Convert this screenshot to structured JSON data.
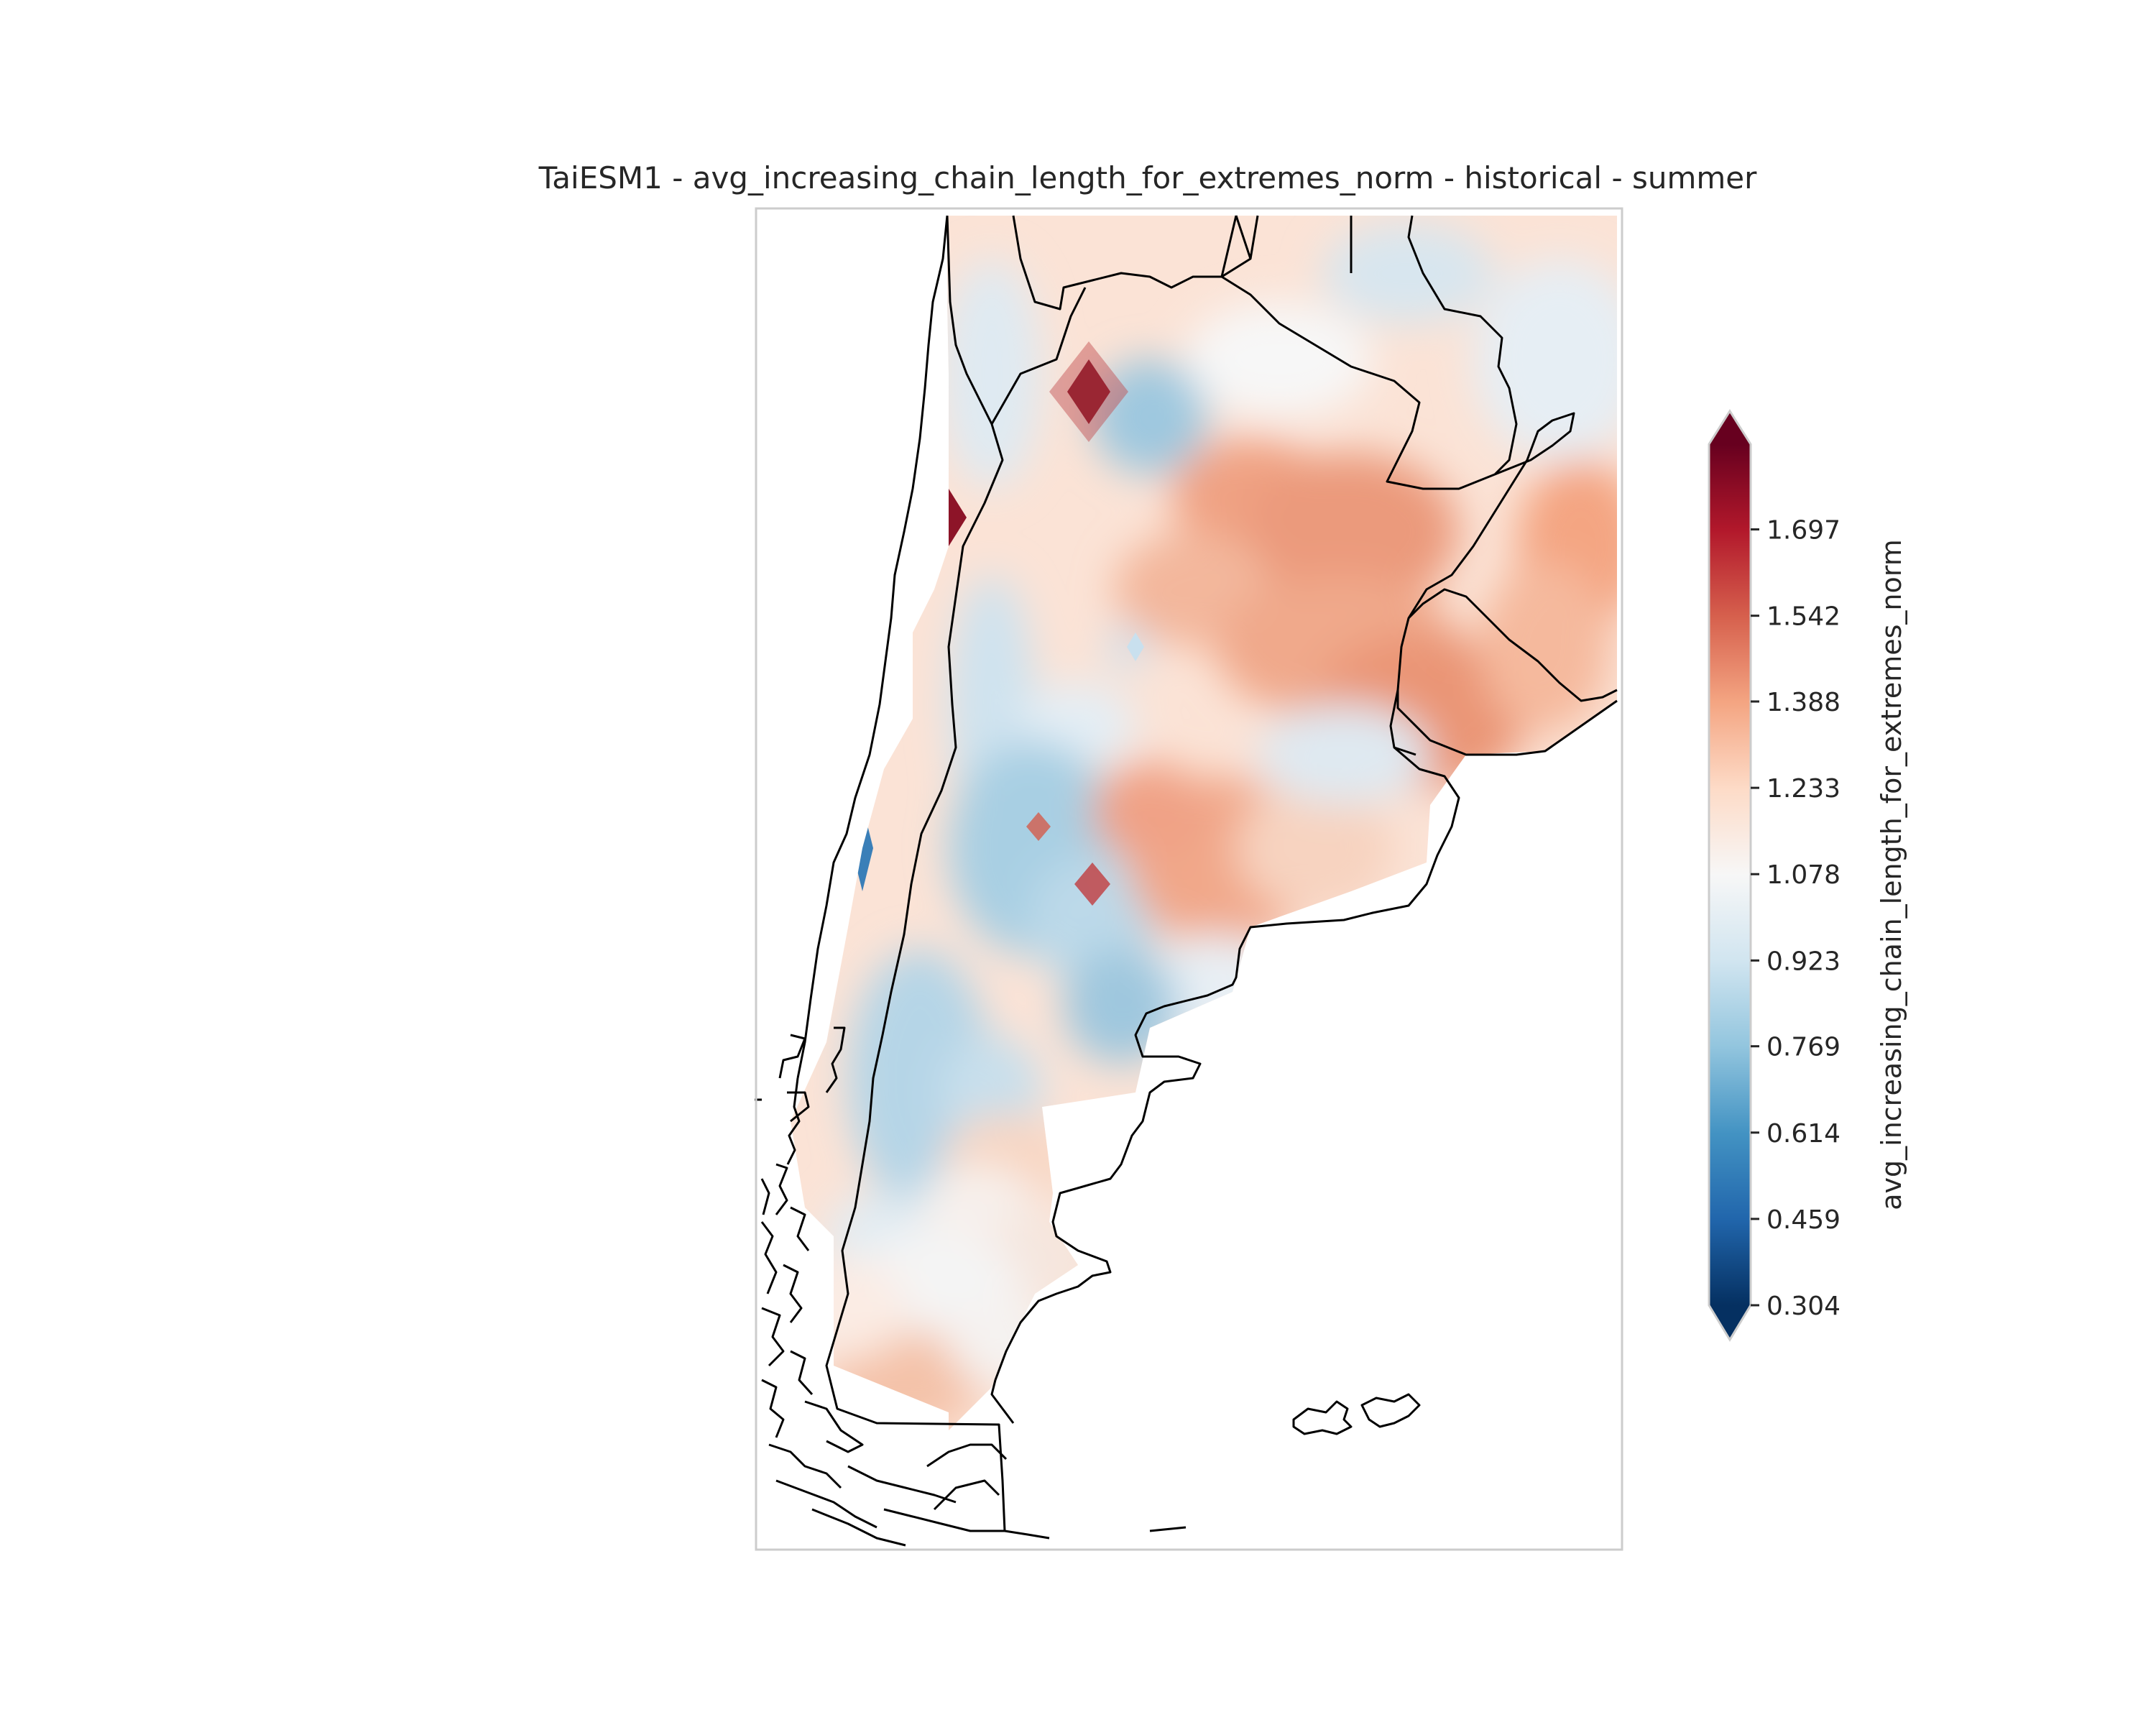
{
  "chart_data": {
    "type": "heatmap",
    "title": "TaiESM1 - avg_increasing_chain_length_for_extremes_norm - historical - summer",
    "colorbar": {
      "label": "avg_increasing_chain_length_for_extremes_norm",
      "ticks": [
        "0.304",
        "0.459",
        "0.614",
        "0.769",
        "0.923",
        "1.078",
        "1.233",
        "1.388",
        "1.542",
        "1.697"
      ],
      "vmin": 0.304,
      "vmax": 1.85,
      "extend": "both",
      "colormap": "RdBu_r"
    },
    "region": "Argentina / southern South America",
    "grid": false
  },
  "colors": {
    "low": "#053061",
    "mid": "#f7f7f7",
    "high": "#67001f",
    "frame": "#cccccc",
    "coast": "#000000"
  }
}
